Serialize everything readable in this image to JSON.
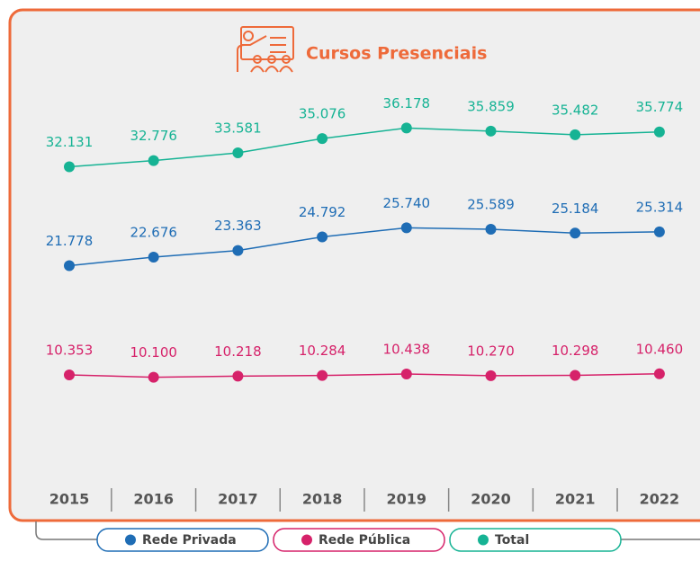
{
  "chart_data": {
    "type": "line",
    "title": "Cursos Presenciais",
    "categories": [
      "2015",
      "2016",
      "2017",
      "2018",
      "2019",
      "2020",
      "2021",
      "2022"
    ],
    "series": [
      {
        "name": "Rede Privada",
        "color": "#1f6db5",
        "values": [
          21778,
          22676,
          23363,
          24792,
          25740,
          25589,
          25184,
          25314
        ],
        "value_labels": [
          "21.778",
          "22.676",
          "23.363",
          "24.792",
          "25.740",
          "25.589",
          "25.184",
          "25.314"
        ]
      },
      {
        "name": "Rede Pública",
        "color": "#d6226a",
        "values": [
          10353,
          10100,
          10218,
          10284,
          10438,
          10270,
          10298,
          10460
        ],
        "value_labels": [
          "10.353",
          "10.100",
          "10.218",
          "10.284",
          "10.438",
          "10.270",
          "10.298",
          "10.460"
        ]
      },
      {
        "name": "Total",
        "color": "#16b394",
        "values": [
          32131,
          32776,
          33581,
          35076,
          36178,
          35859,
          35482,
          35774
        ],
        "value_labels": [
          "32.131",
          "32.776",
          "33.581",
          "35.076",
          "36.178",
          "35.859",
          "35.482",
          "35.774"
        ]
      }
    ]
  }
}
